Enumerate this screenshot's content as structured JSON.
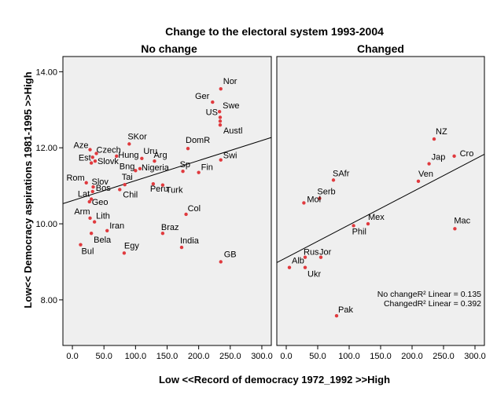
{
  "chart_data": {
    "type": "scatter",
    "title": "Change to the electoral system 1993-2004",
    "xlabel": "Low <<Record of democracy 1972_1992 >>High",
    "ylabel": "Low<< Democracy aspirations 1981-1995 >>High",
    "xlim": [
      -15,
      315
    ],
    "ylim": [
      6.8,
      14.4
    ],
    "xticks": [
      "0.0",
      "50.0",
      "100.0",
      "150.0",
      "200.0",
      "250.0",
      "300.0"
    ],
    "yticks": [
      "8.00",
      "10.00",
      "12.00",
      "14.00"
    ],
    "grid": false,
    "panels": [
      {
        "name": "No change",
        "fit": {
          "x": [
            -15,
            315
          ],
          "y": [
            10.53,
            12.27
          ]
        },
        "points": [
          {
            "label": "Nor",
            "x": 235,
            "y": 13.55
          },
          {
            "label": "Ger",
            "x": 222,
            "y": 13.2
          },
          {
            "label": "Swe",
            "x": 233,
            "y": 12.95
          },
          {
            "label": "US",
            "x": 234,
            "y": 12.8
          },
          {
            "label": "",
            "x": 234,
            "y": 12.7
          },
          {
            "label": "Austl",
            "x": 234,
            "y": 12.6
          },
          {
            "label": "DomR",
            "x": 183,
            "y": 11.98
          },
          {
            "label": "Swi",
            "x": 235,
            "y": 11.68
          },
          {
            "label": "Sp",
            "x": 175,
            "y": 11.38
          },
          {
            "label": "Fin",
            "x": 200,
            "y": 11.35
          },
          {
            "label": "SKor",
            "x": 90,
            "y": 12.1
          },
          {
            "label": "Uru",
            "x": 110,
            "y": 11.72
          },
          {
            "label": "Arg",
            "x": 130,
            "y": 11.65
          },
          {
            "label": "Hung",
            "x": 70,
            "y": 11.78
          },
          {
            "label": "Aze",
            "x": 28,
            "y": 11.95
          },
          {
            "label": "Czech",
            "x": 38,
            "y": 11.85
          },
          {
            "label": "Est",
            "x": 32,
            "y": 11.75
          },
          {
            "label": "Slovk",
            "x": 36,
            "y": 11.65
          },
          {
            "label": "",
            "x": 30,
            "y": 11.6
          },
          {
            "label": "Bng",
            "x": 100,
            "y": 11.4
          },
          {
            "label": "Nigeria",
            "x": 107,
            "y": 11.45
          },
          {
            "label": "Rom",
            "x": 22,
            "y": 11.08
          },
          {
            "label": "Slov",
            "x": 33,
            "y": 10.97
          },
          {
            "label": "Tai",
            "x": 83,
            "y": 11.03
          },
          {
            "label": "Bos",
            "x": 32,
            "y": 10.85
          },
          {
            "label": "Peru",
            "x": 128,
            "y": 11.05
          },
          {
            "label": "Turk",
            "x": 143,
            "y": 11.02
          },
          {
            "label": "Chil",
            "x": 75,
            "y": 10.9
          },
          {
            "label": "Lat",
            "x": 30,
            "y": 10.65
          },
          {
            "label": "Geo",
            "x": 27,
            "y": 10.58
          },
          {
            "label": "Col",
            "x": 180,
            "y": 10.25
          },
          {
            "label": "Arm",
            "x": 28,
            "y": 10.15
          },
          {
            "label": "Lith",
            "x": 35,
            "y": 10.05
          },
          {
            "label": "Iran",
            "x": 55,
            "y": 9.82
          },
          {
            "label": "Bela",
            "x": 30,
            "y": 9.75
          },
          {
            "label": "Braz",
            "x": 143,
            "y": 9.75
          },
          {
            "label": "India",
            "x": 173,
            "y": 9.38
          },
          {
            "label": "Bul",
            "x": 13,
            "y": 9.45
          },
          {
            "label": "Egy",
            "x": 82,
            "y": 9.23
          },
          {
            "label": "GB",
            "x": 235,
            "y": 9.0
          }
        ]
      },
      {
        "name": "Changed",
        "fit": {
          "x": [
            -15,
            315
          ],
          "y": [
            8.98,
            11.83
          ]
        },
        "points": [
          {
            "label": "NZ",
            "x": 235,
            "y": 12.23
          },
          {
            "label": "Cro",
            "x": 267,
            "y": 11.78
          },
          {
            "label": "Jap",
            "x": 227,
            "y": 11.58
          },
          {
            "label": "Ven",
            "x": 210,
            "y": 11.12
          },
          {
            "label": "SAfr",
            "x": 75,
            "y": 11.15
          },
          {
            "label": "Serb",
            "x": 53,
            "y": 10.67
          },
          {
            "label": "Mol",
            "x": 28,
            "y": 10.55
          },
          {
            "label": "Mex",
            "x": 130,
            "y": 10.0
          },
          {
            "label": "Phil",
            "x": 107,
            "y": 9.95
          },
          {
            "label": "Mac",
            "x": 268,
            "y": 9.87
          },
          {
            "label": "Rus",
            "x": 30,
            "y": 9.12
          },
          {
            "label": "Jor",
            "x": 55,
            "y": 9.12
          },
          {
            "label": "Alb",
            "x": 5,
            "y": 8.85
          },
          {
            "label": "Ukr",
            "x": 30,
            "y": 8.85
          },
          {
            "label": "Pak",
            "x": 80,
            "y": 7.58
          }
        ]
      }
    ],
    "annotations": [
      "No changeR² Linear = 0.135",
      "ChangedR² Linear = 0.392"
    ],
    "colors": {
      "point": "#e03a3e",
      "line": "#000000",
      "panel_bg": "#efefef"
    }
  }
}
